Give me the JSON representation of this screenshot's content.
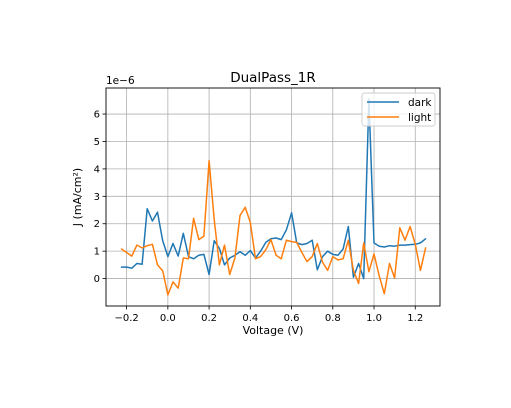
{
  "chart_data": {
    "type": "line",
    "title": "DualPass_1R",
    "xlabel": "Voltage (V)",
    "ylabel": "J (mA/cm²)",
    "offset_text": "1e−6",
    "xlim": [
      -0.3,
      1.32
    ],
    "ylim": [
      -1.0,
      6.95
    ],
    "x_ticks": [
      -0.2,
      0.0,
      0.2,
      0.4,
      0.6,
      0.8,
      1.0,
      1.2
    ],
    "x_tick_labels": [
      "−0.2",
      "0.0",
      "0.2",
      "0.4",
      "0.6",
      "0.8",
      "1.0",
      "1.2"
    ],
    "y_ticks": [
      0,
      1,
      2,
      3,
      4,
      5,
      6
    ],
    "y_tick_labels": [
      "0",
      "1",
      "2",
      "3",
      "4",
      "5",
      "6"
    ],
    "grid": true,
    "legend_position": "top-right",
    "x": [
      -0.225,
      -0.2,
      -0.175,
      -0.15,
      -0.125,
      -0.1,
      -0.075,
      -0.05,
      -0.025,
      0.0,
      0.025,
      0.05,
      0.075,
      0.1,
      0.125,
      0.15,
      0.175,
      0.2,
      0.225,
      0.25,
      0.275,
      0.3,
      0.325,
      0.35,
      0.375,
      0.4,
      0.425,
      0.45,
      0.475,
      0.5,
      0.525,
      0.55,
      0.575,
      0.6,
      0.625,
      0.65,
      0.675,
      0.7,
      0.725,
      0.75,
      0.775,
      0.8,
      0.825,
      0.85,
      0.875,
      0.9,
      0.925,
      0.95,
      0.975,
      1.0,
      1.025,
      1.05,
      1.075,
      1.1,
      1.125,
      1.15,
      1.175,
      1.2,
      1.225,
      1.25
    ],
    "series": [
      {
        "name": "dark",
        "color": "#1f77b4",
        "values": [
          0.42,
          0.42,
          0.38,
          0.55,
          0.52,
          2.55,
          2.1,
          2.42,
          1.38,
          0.8,
          1.28,
          0.82,
          1.65,
          0.8,
          0.72,
          0.85,
          0.88,
          0.15,
          1.38,
          1.1,
          0.5,
          0.75,
          0.85,
          0.98,
          0.85,
          1.02,
          0.75,
          1.0,
          1.32,
          1.45,
          1.48,
          1.42,
          1.78,
          2.4,
          1.3,
          1.24,
          1.28,
          1.4,
          0.32,
          0.8,
          1.0,
          0.88,
          0.85,
          1.08,
          1.9,
          0.05,
          0.55,
          0.0,
          6.55,
          1.3,
          1.18,
          1.15,
          1.2,
          1.18,
          1.22,
          1.22,
          1.24,
          1.25,
          1.3,
          1.45
        ]
      },
      {
        "name": "light",
        "color": "#ff7f0e",
        "values": [
          1.08,
          0.95,
          0.82,
          1.22,
          1.12,
          1.2,
          1.25,
          0.5,
          0.28,
          -0.6,
          -0.12,
          -0.35,
          0.75,
          0.72,
          2.2,
          1.42,
          1.55,
          4.3,
          2.15,
          0.5,
          1.22,
          0.15,
          0.75,
          2.3,
          2.6,
          2.05,
          0.72,
          0.8,
          1.05,
          1.42,
          0.85,
          0.72,
          1.4,
          1.35,
          1.32,
          0.95,
          0.62,
          0.8,
          1.28,
          0.6,
          0.3,
          0.8,
          0.68,
          0.72,
          1.4,
          0.3,
          -0.18,
          1.3,
          0.25,
          0.9,
          0.1,
          -0.55,
          0.55,
          0.02,
          1.85,
          1.4,
          1.9,
          1.25,
          0.3,
          1.12
        ]
      }
    ]
  }
}
